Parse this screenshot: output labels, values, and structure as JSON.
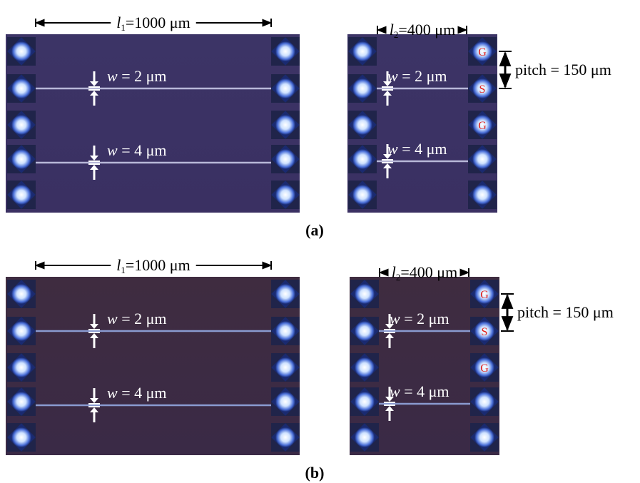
{
  "panels": [
    {
      "label": "(a)",
      "left_chip": {
        "length": {
          "symbol": "l",
          "subscript": "1",
          "value": "=1000 μm"
        },
        "widths": [
          {
            "var": "w",
            "value": " = 2 μm"
          },
          {
            "var": "w",
            "value": " = 4 μm"
          }
        ]
      },
      "right_chip": {
        "length": {
          "symbol": "l",
          "subscript": "2",
          "value": "=400 μm"
        },
        "widths": [
          {
            "var": "w",
            "value": " = 2 μm"
          },
          {
            "var": "w",
            "value": " = 4 μm"
          }
        ],
        "pads": [
          "G",
          "S",
          "G"
        ],
        "pitch": "pitch = 150 μm"
      }
    },
    {
      "label": "(b)",
      "left_chip": {
        "length": {
          "symbol": "l",
          "subscript": "1",
          "value": "=1000 μm"
        },
        "widths": [
          {
            "var": "w",
            "value": " = 2 μm"
          },
          {
            "var": "w",
            "value": " = 4 μm"
          }
        ]
      },
      "right_chip": {
        "length": {
          "symbol": "l",
          "subscript": "2",
          "value": "=400 μm"
        },
        "widths": [
          {
            "var": "w",
            "value": " = 2 μm"
          },
          {
            "var": "w",
            "value": " = 4 μm"
          }
        ],
        "pads": [
          "G",
          "S",
          "G"
        ],
        "pitch": "pitch = 150 μm"
      }
    }
  ]
}
